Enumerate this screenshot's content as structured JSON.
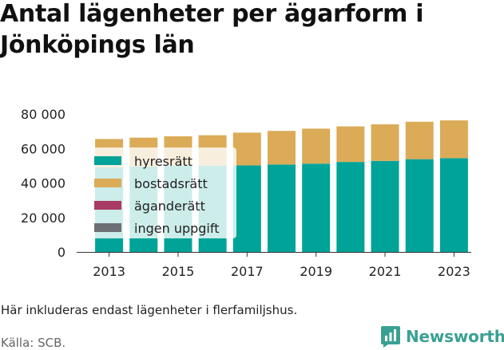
{
  "title": "Antal lägenheter per ägarform i Jönköpings län",
  "note": "Här inkluderas endast lägenheter i flerfamiljshus.",
  "source": "Källa: SCB.",
  "brand": "Newsworthy",
  "colors": {
    "hyresratt": "#00a398",
    "bostadsratt": "#dbab58",
    "aganderatt": "#a83a63",
    "ingen_uppgift": "#6c6f74",
    "brand": "#3aa192",
    "axis": "#333333"
  },
  "chart_data": {
    "type": "bar",
    "stacked": true,
    "categories": [
      "2013",
      "2014",
      "2015",
      "2016",
      "2017",
      "2018",
      "2019",
      "2020",
      "2021",
      "2022",
      "2023"
    ],
    "x_tick_labels": [
      "2013",
      "2015",
      "2017",
      "2019",
      "2021",
      "2023"
    ],
    "y_tick_labels": [
      "0",
      "20 000",
      "40 000",
      "60 000",
      "80 000"
    ],
    "ylim": [
      0,
      80000
    ],
    "y_ticks": [
      0,
      20000,
      40000,
      60000,
      80000
    ],
    "grid": false,
    "legend_position": "top-left",
    "series": [
      {
        "name": "hyresrätt",
        "color": "#00a398",
        "values": [
          49000,
          49500,
          50000,
          50000,
          50200,
          50700,
          51200,
          52200,
          52800,
          53800,
          54400
        ]
      },
      {
        "name": "bostadsrätt",
        "color": "#dbab58",
        "values": [
          16500,
          16800,
          17100,
          17700,
          19000,
          19500,
          20300,
          20600,
          21200,
          21700,
          21900
        ]
      },
      {
        "name": "äganderätt",
        "color": "#a83a63",
        "values": [
          0,
          0,
          0,
          0,
          0,
          0,
          0,
          0,
          0,
          0,
          0
        ]
      },
      {
        "name": "ingen uppgift",
        "color": "#6c6f74",
        "values": [
          0,
          0,
          0,
          0,
          0,
          0,
          0,
          0,
          0,
          0,
          0
        ]
      }
    ]
  }
}
